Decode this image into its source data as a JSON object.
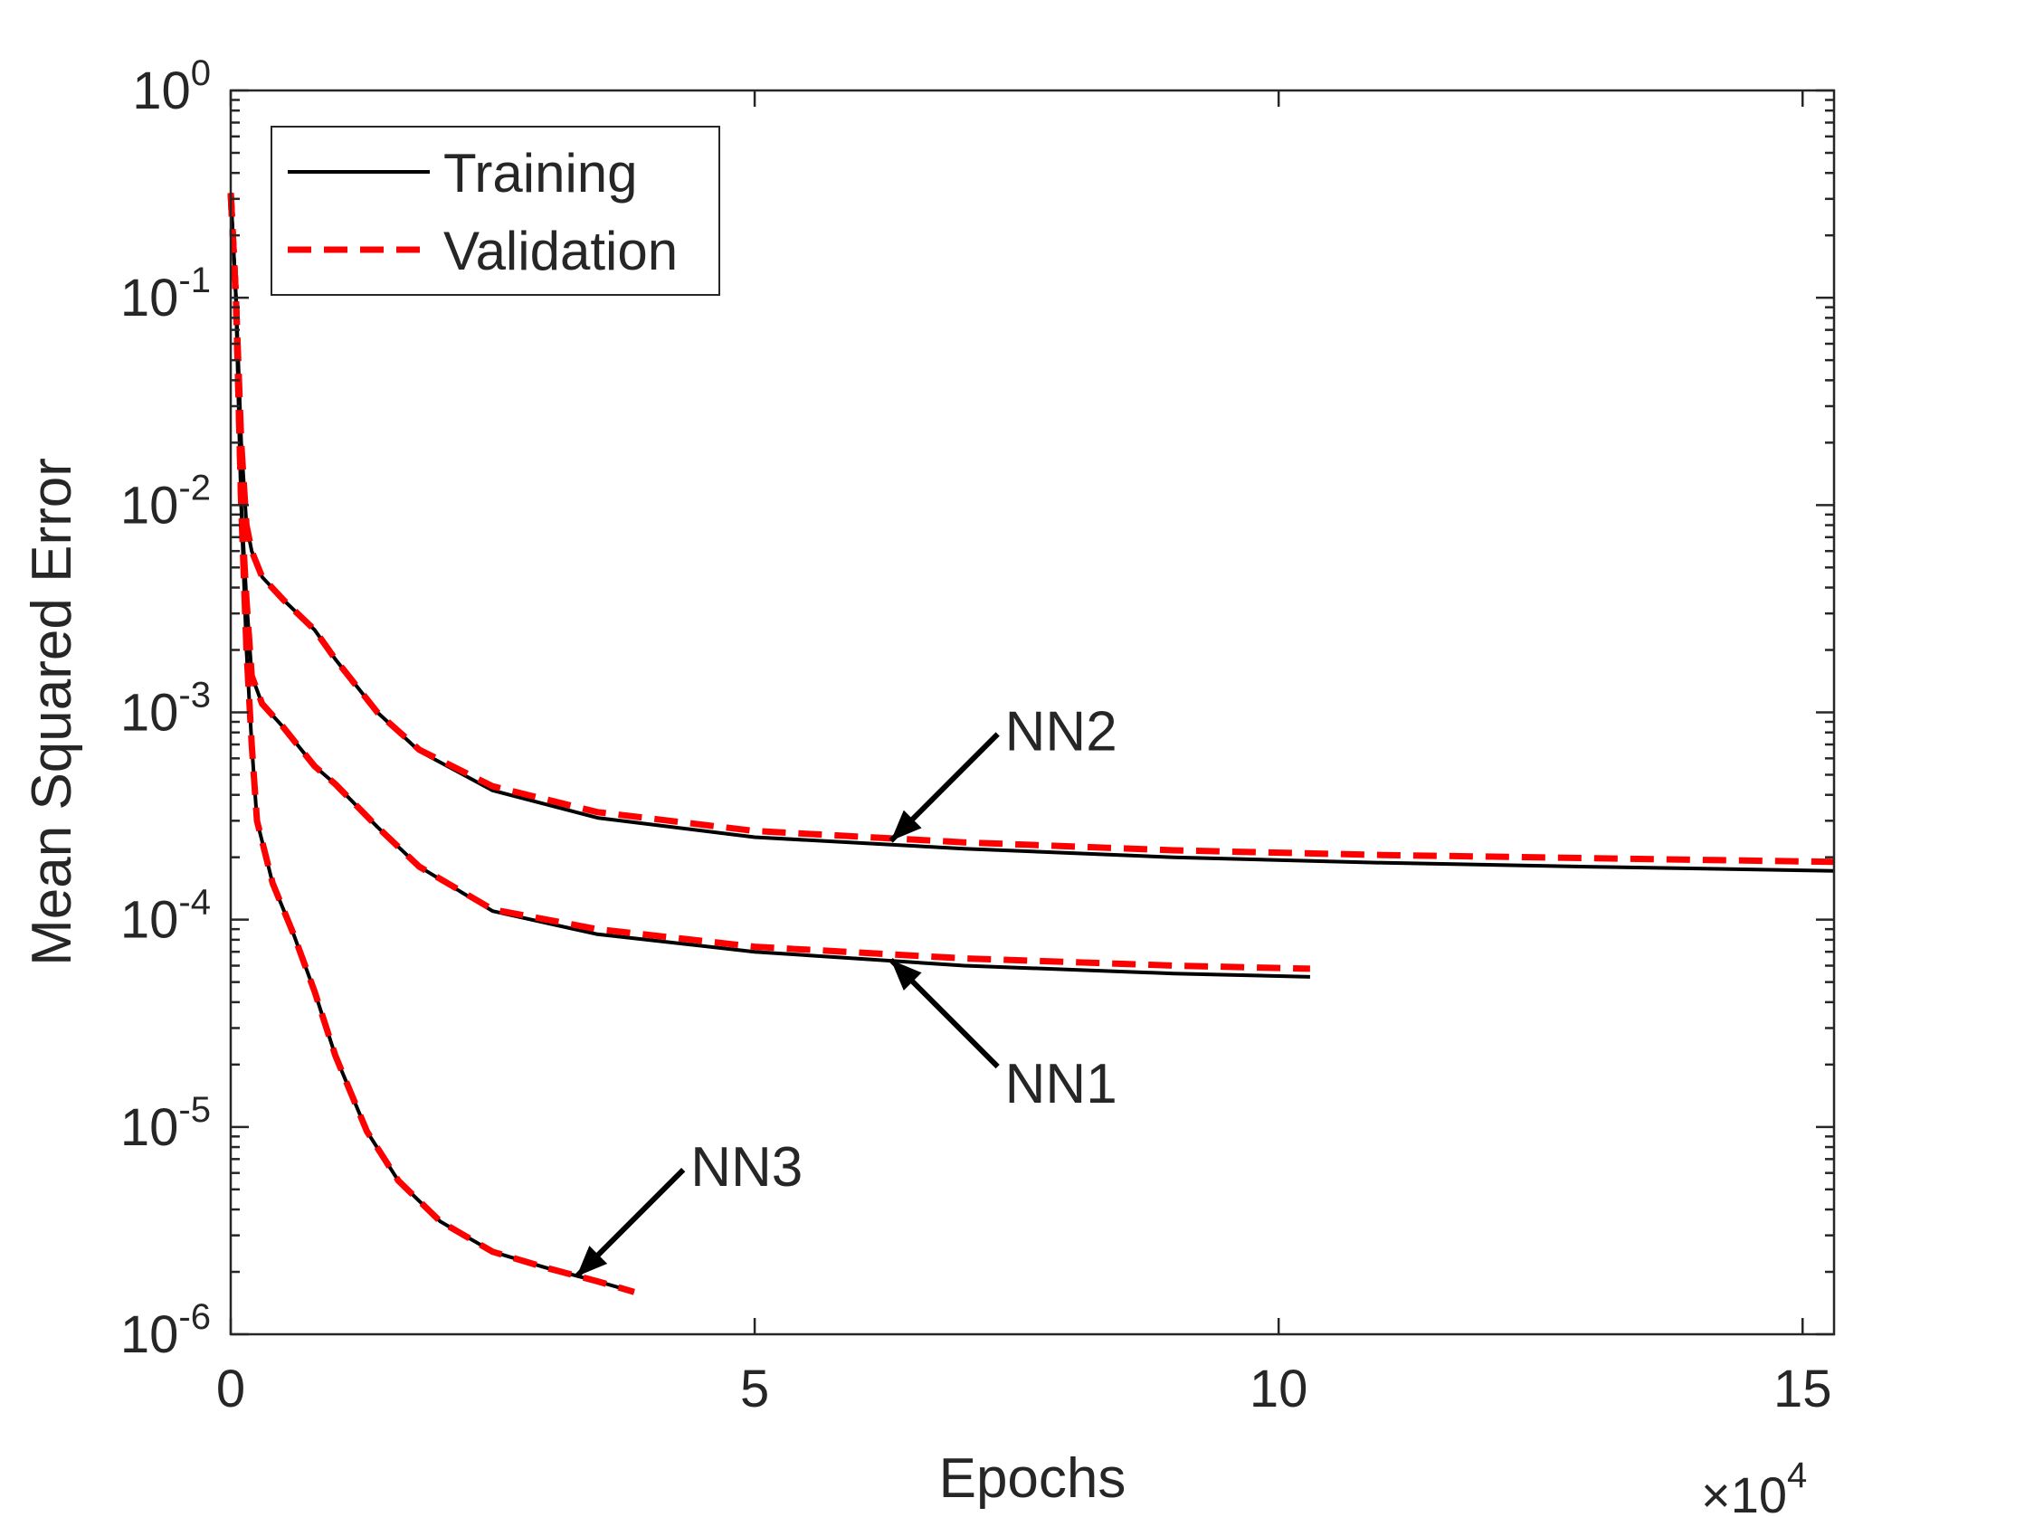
{
  "chart_data": {
    "type": "line",
    "title": "",
    "xlabel": "Epochs",
    "ylabel": "Mean Squared Error",
    "x_exponent_label": {
      "prefix": "×10",
      "exponent": "4"
    },
    "x_scale_factor": 10000,
    "xlim": [
      0,
      15.3
    ],
    "ylim": [
      1e-06,
      1
    ],
    "y_scale": "log",
    "x_ticks": [
      {
        "value": 0,
        "label": "0"
      },
      {
        "value": 5,
        "label": "5"
      },
      {
        "value": 10,
        "label": "10"
      },
      {
        "value": 15,
        "label": "15"
      }
    ],
    "y_ticks": [
      {
        "value": 1,
        "base": "10",
        "exp": "0"
      },
      {
        "value": 0.1,
        "base": "10",
        "exp": "-1"
      },
      {
        "value": 0.01,
        "base": "10",
        "exp": "-2"
      },
      {
        "value": 0.001,
        "base": "10",
        "exp": "-3"
      },
      {
        "value": 0.0001,
        "base": "10",
        "exp": "-4"
      },
      {
        "value": 1e-05,
        "base": "10",
        "exp": "-5"
      },
      {
        "value": 1e-06,
        "base": "10",
        "exp": "-6"
      }
    ],
    "grid": false,
    "legend": {
      "placement": "top-left",
      "entries": [
        {
          "label": "Training",
          "color": "#000000",
          "style": "solid"
        },
        {
          "label": "Validation",
          "color": "#ff0000",
          "style": "dashed"
        }
      ]
    },
    "series": [
      {
        "name": "NN1 Training",
        "model": "NN1",
        "kind": "Training",
        "color": "#000000",
        "style": "solid",
        "x": [
          0,
          0.05,
          0.1,
          0.15,
          0.2,
          0.3,
          0.5,
          0.8,
          1.0,
          1.4,
          1.8,
          2.5,
          3.5,
          5.0,
          7.0,
          9.0,
          10.3
        ],
        "y": [
          0.32,
          0.1,
          0.01,
          0.0035,
          0.0015,
          0.0011,
          0.00085,
          0.00055,
          0.00045,
          0.00028,
          0.00018,
          0.00011,
          8.5e-05,
          7e-05,
          6e-05,
          5.5e-05,
          5.3e-05
        ]
      },
      {
        "name": "NN1 Validation",
        "model": "NN1",
        "kind": "Validation",
        "color": "#ff0000",
        "style": "dashed",
        "x": [
          0,
          0.05,
          0.1,
          0.15,
          0.2,
          0.3,
          0.5,
          0.8,
          1.0,
          1.4,
          1.8,
          2.5,
          3.5,
          5.0,
          7.0,
          9.0,
          10.3
        ],
        "y": [
          0.32,
          0.1,
          0.01,
          0.0035,
          0.0015,
          0.0011,
          0.00085,
          0.00055,
          0.00045,
          0.00028,
          0.00018,
          0.000112,
          9e-05,
          7.4e-05,
          6.5e-05,
          6e-05,
          5.8e-05
        ]
      },
      {
        "name": "NN2 Training",
        "model": "NN2",
        "kind": "Training",
        "color": "#000000",
        "style": "solid",
        "x": [
          0,
          0.05,
          0.1,
          0.15,
          0.2,
          0.3,
          0.5,
          0.8,
          1.0,
          1.4,
          1.8,
          2.5,
          3.5,
          5.0,
          7.0,
          9.0,
          11.0,
          13.0,
          15.3
        ],
        "y": [
          0.32,
          0.1,
          0.02,
          0.008,
          0.006,
          0.0045,
          0.0035,
          0.0025,
          0.0018,
          0.001,
          0.00065,
          0.00042,
          0.00031,
          0.00025,
          0.00022,
          0.0002,
          0.000188,
          0.00018,
          0.000172
        ]
      },
      {
        "name": "NN2 Validation",
        "model": "NN2",
        "kind": "Validation",
        "color": "#ff0000",
        "style": "dashed",
        "x": [
          0,
          0.05,
          0.1,
          0.15,
          0.2,
          0.3,
          0.5,
          0.8,
          1.0,
          1.4,
          1.8,
          2.5,
          3.5,
          5.0,
          7.0,
          9.0,
          11.0,
          13.0,
          15.3
        ],
        "y": [
          0.32,
          0.1,
          0.02,
          0.008,
          0.006,
          0.0045,
          0.0035,
          0.0025,
          0.0018,
          0.001,
          0.00066,
          0.00044,
          0.00033,
          0.000268,
          0.000236,
          0.000216,
          0.000205,
          0.000198,
          0.00019
        ]
      },
      {
        "name": "NN3 Training",
        "model": "NN3",
        "kind": "Training",
        "color": "#000000",
        "style": "solid",
        "x": [
          0,
          0.05,
          0.1,
          0.15,
          0.2,
          0.25,
          0.4,
          0.6,
          0.8,
          1.0,
          1.3,
          1.6,
          2.0,
          2.5,
          3.0,
          3.5,
          3.85
        ],
        "y": [
          0.32,
          0.1,
          0.01,
          0.002,
          0.0007,
          0.0003,
          0.00015,
          8.5e-05,
          4.5e-05,
          2.2e-05,
          9.5e-06,
          5.5e-06,
          3.5e-06,
          2.5e-06,
          2.1e-06,
          1.8e-06,
          1.6e-06
        ]
      },
      {
        "name": "NN3 Validation",
        "model": "NN3",
        "kind": "Validation",
        "color": "#ff0000",
        "style": "dashed",
        "x": [
          0,
          0.05,
          0.1,
          0.15,
          0.2,
          0.25,
          0.4,
          0.6,
          0.8,
          1.0,
          1.3,
          1.6,
          2.0,
          2.5,
          3.0,
          3.5,
          3.85
        ],
        "y": [
          0.32,
          0.1,
          0.01,
          0.002,
          0.0007,
          0.0003,
          0.00015,
          8.5e-05,
          4.5e-05,
          2.2e-05,
          9.5e-06,
          5.5e-06,
          3.5e-06,
          2.5e-06,
          2.1e-06,
          1.8e-06,
          1.6e-06
        ]
      }
    ],
    "annotations": [
      {
        "text": "NN2",
        "arrow_to": {
          "x": 6.3,
          "y": 0.00024
        },
        "text_side": "upper-right"
      },
      {
        "text": "NN1",
        "arrow_to": {
          "x": 6.3,
          "y": 6.4e-05
        },
        "text_side": "lower-right"
      },
      {
        "text": "NN3",
        "arrow_to": {
          "x": 3.3,
          "y": 1.9e-06
        },
        "text_side": "upper-right"
      }
    ]
  }
}
